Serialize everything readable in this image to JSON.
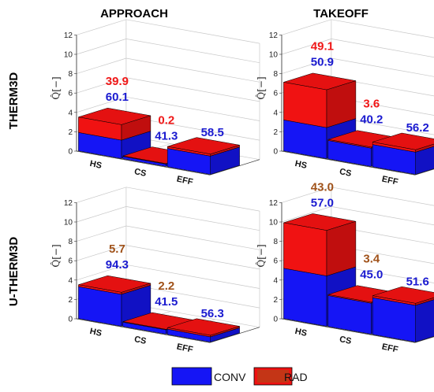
{
  "colors": {
    "conv": "#1515f5",
    "rad": "#f01212",
    "conv_label": "#1a1ad0",
    "rad_label": "#f01818",
    "rad_label_u": "#a0521a"
  },
  "legend": {
    "conv_label": "CONV",
    "rad_label": "RAD"
  },
  "chart_data": [
    {
      "type": "bar",
      "title": "APPROACH",
      "row": "THERM3D",
      "ylabel": "Q̂[−]",
      "ylim": [
        0,
        12
      ],
      "yticks": [
        "0",
        "2",
        "4",
        "6",
        "8",
        "10",
        "12"
      ],
      "categories": [
        "HS",
        "CS",
        "EFF"
      ],
      "series": [
        {
          "name": "CONV",
          "values": [
            1.9,
            0.25,
            1.9
          ]
        },
        {
          "name": "RAD",
          "values": [
            1.6,
            0.05,
            0.2
          ]
        }
      ],
      "labels": [
        {
          "rad": "39.9",
          "conv": "60.1"
        },
        {
          "rad": "0.2",
          "conv": "41.3"
        },
        {
          "rad": "",
          "conv": "58.5"
        }
      ]
    },
    {
      "type": "bar",
      "title": "TAKEOFF",
      "row": "THERM3D",
      "ylabel": "Q̂[−]",
      "ylim": [
        0,
        12
      ],
      "yticks": [
        "0",
        "2",
        "4",
        "6",
        "8",
        "10",
        "12"
      ],
      "categories": [
        "HS",
        "CS",
        "EFF"
      ],
      "series": [
        {
          "name": "CONV",
          "values": [
            3.2,
            1.9,
            2.3
          ]
        },
        {
          "name": "RAD",
          "values": [
            3.9,
            0.1,
            0.25
          ]
        }
      ],
      "labels": [
        {
          "rad": "49.1",
          "conv": "50.9"
        },
        {
          "rad": "3.6",
          "conv": "40.2"
        },
        {
          "rad": "",
          "conv": "56.2"
        }
      ]
    },
    {
      "type": "bar",
      "title": "",
      "row": "U-THERM3D",
      "ylabel": "Q̂[−]",
      "ylim": [
        0,
        12
      ],
      "yticks": [
        "0",
        "2",
        "4",
        "6",
        "8",
        "10",
        "12"
      ],
      "categories": [
        "HS",
        "CS",
        "EFF"
      ],
      "series": [
        {
          "name": "CONV",
          "values": [
            3.3,
            0.45,
            0.55
          ]
        },
        {
          "name": "RAD",
          "values": [
            0.2,
            0.05,
            0.15
          ]
        }
      ],
      "labels": [
        {
          "rad": "5.7",
          "conv": "94.3"
        },
        {
          "rad": "2.2",
          "conv": "41.5"
        },
        {
          "rad": "",
          "conv": "56.3"
        }
      ]
    },
    {
      "type": "bar",
      "title": "",
      "row": "U-THERM3D",
      "ylabel": "Q̂[−]",
      "ylim": [
        0,
        12
      ],
      "yticks": [
        "0",
        "2",
        "4",
        "6",
        "8",
        "10",
        "12"
      ],
      "categories": [
        "HS",
        "CS",
        "EFF"
      ],
      "series": [
        {
          "name": "CONV",
          "values": [
            5.2,
            3.2,
            3.8
          ]
        },
        {
          "name": "RAD",
          "values": [
            4.7,
            0.1,
            0.2
          ]
        }
      ],
      "labels": [
        {
          "rad": "43.0",
          "conv": "57.0"
        },
        {
          "rad": "3.4",
          "conv": "45.0"
        },
        {
          "rad": "",
          "conv": "51.6"
        }
      ]
    }
  ]
}
